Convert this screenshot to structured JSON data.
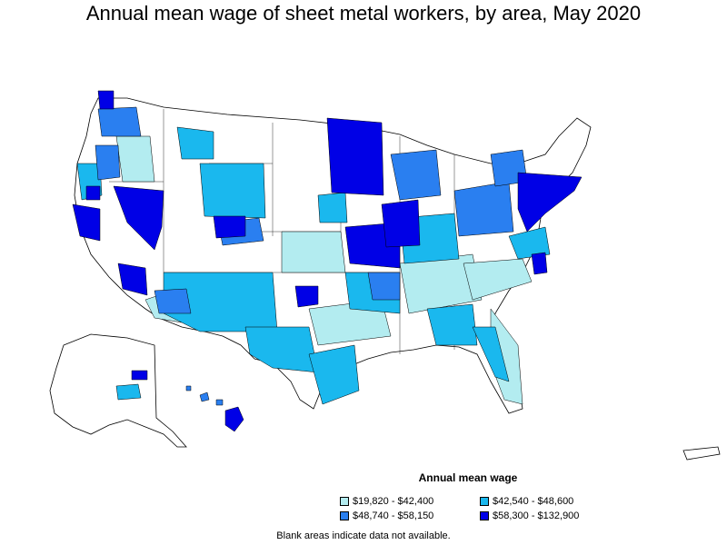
{
  "title": "Annual mean wage of sheet metal workers, by area, May 2020",
  "legend": {
    "title": "Annual mean wage",
    "items": [
      {
        "label": "$19,820 - $42,400",
        "color": "#b3ecf0"
      },
      {
        "label": "$42,540 - $48,600",
        "color": "#1ab8ee"
      },
      {
        "label": "$48,740 - $58,150",
        "color": "#2a7ff0"
      },
      {
        "label": "$58,300 - $132,900",
        "color": "#0000e6"
      }
    ]
  },
  "note": "Blank areas indicate data not available.",
  "colors": {
    "blank": "#ffffff",
    "border": "#000000"
  }
}
